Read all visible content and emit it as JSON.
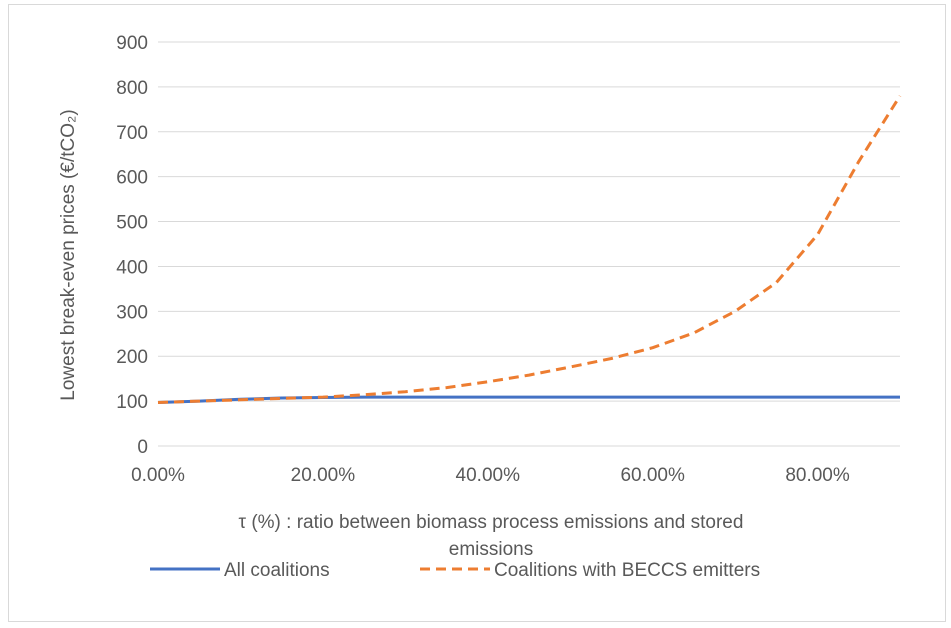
{
  "chart_data": {
    "type": "line",
    "title": "",
    "xlabel_line1": "τ (%) : ratio between biomass process emissions and stored",
    "xlabel_line2": "emissions",
    "ylabel": "Lowest break-even prices (€/tCO₂)",
    "xlim": [
      0,
      0.9
    ],
    "ylim": [
      0,
      900
    ],
    "x_ticks": [
      0,
      0.2,
      0.4,
      0.6,
      0.8
    ],
    "x_tick_labels": [
      "0.00%",
      "20.00%",
      "40.00%",
      "60.00%",
      "80.00%"
    ],
    "y_ticks": [
      0,
      100,
      200,
      300,
      400,
      500,
      600,
      700,
      800,
      900
    ],
    "y_tick_labels": [
      "0",
      "100",
      "200",
      "300",
      "400",
      "500",
      "600",
      "700",
      "800",
      "900"
    ],
    "grid": true,
    "legend_position": "bottom",
    "series": [
      {
        "name": "All coalitions",
        "color": "#4472c4",
        "style": "solid",
        "x": [
          0,
          0.05,
          0.1,
          0.15,
          0.2,
          0.25,
          0.3,
          0.9
        ],
        "y": [
          97,
          100,
          104,
          107,
          108,
          109,
          109,
          109
        ]
      },
      {
        "name": "Coalitions with BECCS emitters",
        "color": "#ed7d31",
        "style": "dashed",
        "x": [
          0,
          0.05,
          0.1,
          0.15,
          0.2,
          0.25,
          0.3,
          0.35,
          0.4,
          0.45,
          0.5,
          0.55,
          0.6,
          0.65,
          0.7,
          0.75,
          0.8,
          0.85,
          0.9
        ],
        "y": [
          97,
          100,
          103,
          106,
          109,
          114,
          121,
          130,
          143,
          158,
          176,
          195,
          219,
          252,
          300,
          364,
          471,
          634,
          780
        ]
      }
    ]
  }
}
